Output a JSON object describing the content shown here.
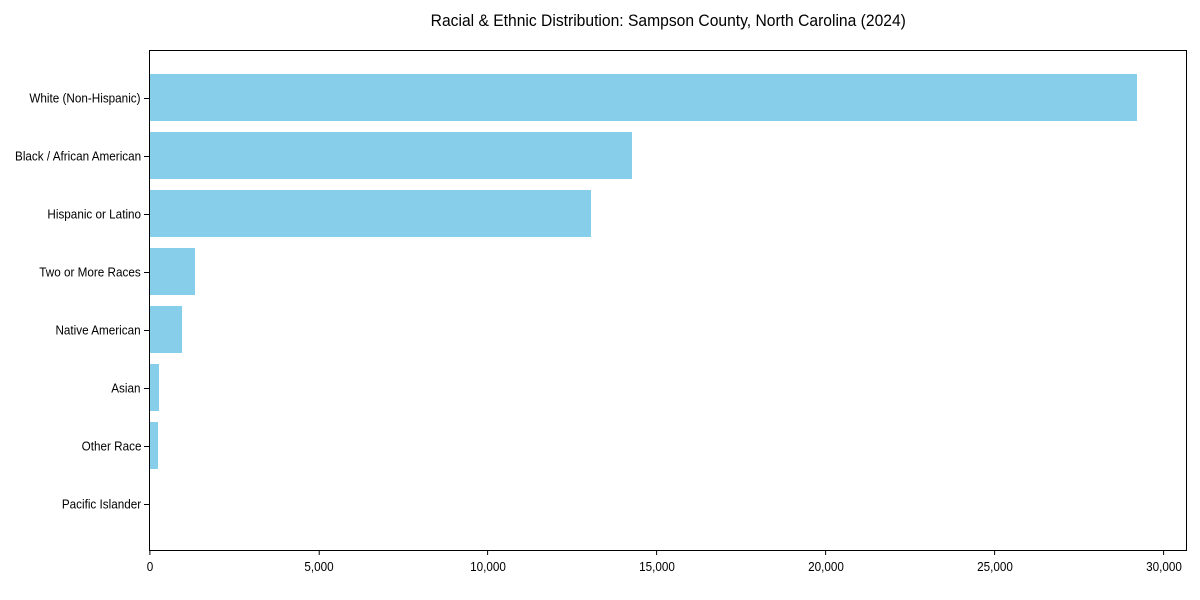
{
  "chart_data": {
    "type": "bar",
    "orientation": "horizontal",
    "title": "Racial & Ethnic Distribution: Sampson County, North Carolina (2024)",
    "categories": [
      "White (Non-Hispanic)",
      "Black / African American",
      "Hispanic or Latino",
      "Two or More Races",
      "Native American",
      "Asian",
      "Other Race",
      "Pacific Islander"
    ],
    "values": [
      29200,
      14270,
      13060,
      1320,
      940,
      260,
      230,
      0
    ],
    "xlabel": "",
    "ylabel": "",
    "xlim": [
      0,
      30660
    ],
    "x_ticks": [
      0,
      5000,
      10000,
      15000,
      20000,
      25000,
      30000
    ],
    "x_tick_labels": [
      "0",
      "5,000",
      "10,000",
      "15,000",
      "20,000",
      "25,000",
      "30,000"
    ],
    "bar_color": "#87CEEB",
    "frame_color": "#000000",
    "background_color": "#ffffff",
    "grid": false,
    "legend": "none"
  }
}
